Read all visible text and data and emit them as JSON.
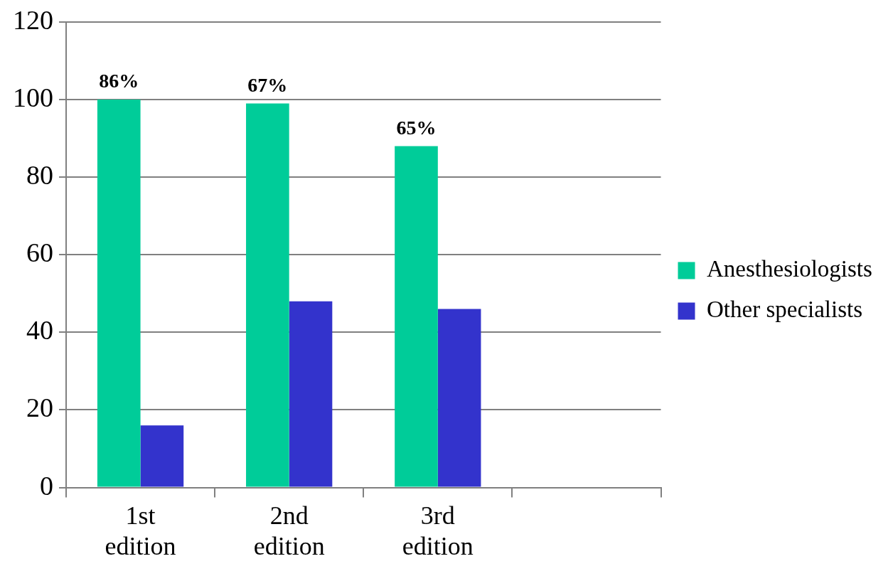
{
  "chart_data": {
    "type": "bar",
    "categories": [
      "1st edition",
      "2nd edition",
      "3rd edition",
      null
    ],
    "series": [
      {
        "name": "Anesthesiologists",
        "color": "#00cc99",
        "values": [
          100,
          99,
          88,
          null
        ]
      },
      {
        "name": "Other specialists",
        "color": "#3333cc",
        "values": [
          16,
          48,
          46,
          null
        ]
      }
    ],
    "annotations": [
      {
        "text": "86%",
        "x": "1st edition",
        "y": 100
      },
      {
        "text": "67%",
        "x": "2nd edition",
        "y": 99
      },
      {
        "text": "65%",
        "x": "3rd edition",
        "y": 88
      }
    ],
    "ylim": [
      0,
      120
    ],
    "yticks": [
      0,
      20,
      40,
      60,
      80,
      100,
      120
    ],
    "grid": "y",
    "legend": "right"
  }
}
